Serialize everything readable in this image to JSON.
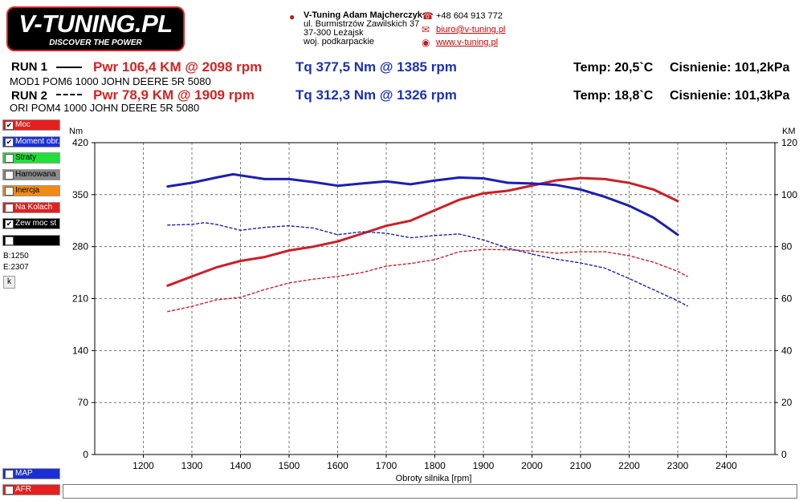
{
  "logo": {
    "main": "V-TUNING.PL",
    "sub": "DISCOVER THE POWER"
  },
  "company": {
    "name": "V-Tuning Adam Majcherczyk",
    "street": "ul. Burmistrzów Zawilskich 37",
    "city": "37-300 Leżajsk",
    "region": "woj. podkarpackie",
    "phone": "+48 604 913 772",
    "email": "biuro@v-tuning.pl",
    "web": "www.v-tuning.pl"
  },
  "runs": [
    {
      "label": "RUN 1",
      "desc": "MOD1 POM6 1000 JOHN DEERE 5R 5080",
      "pwr": "Pwr  106,4 KM @ 2098 rpm",
      "tq": "Tq 377,5 Nm @ 1385 rpm",
      "temp": "Temp: 20,5`C",
      "press": "Cisnienie: 101,2kPa"
    },
    {
      "label": "RUN 2",
      "desc": "ORI POM4 1000 JOHN DEERE 5R 5080",
      "pwr": "Pwr  78,9 KM @ 1909 rpm",
      "tq": "Tq 312,3 Nm @ 1326 rpm",
      "temp": "Temp: 18,8`C",
      "press": "Cisnienie: 101,3kPa"
    }
  ],
  "legend_side": [
    {
      "label": "Moc",
      "checked": true,
      "color": "#e32020",
      "text_color": "#fff"
    },
    {
      "label": "Moment obr.",
      "checked": true,
      "color": "#1b2fd6",
      "text_color": "#fff"
    },
    {
      "label": "Straty",
      "checked": false,
      "color": "#22e03a",
      "text_color": "#000"
    },
    {
      "label": "Hamowana",
      "checked": false,
      "color": "#8a8a8a",
      "text_color": "#000"
    },
    {
      "label": "Inercja",
      "checked": false,
      "color": "#f28a14",
      "text_color": "#000"
    },
    {
      "label": "Na Kolach",
      "checked": false,
      "color": "#e32020",
      "text_color": "#fff"
    },
    {
      "label": "Zew moc st",
      "checked": true,
      "color": "#000000",
      "text_color": "#fff"
    },
    {
      "label": "",
      "checked": false,
      "color": "#000000",
      "text_color": "#fff"
    }
  ],
  "side_notes": {
    "b": "B:1250",
    "e": "E:2307",
    "k": "k"
  },
  "legend_bottom": [
    {
      "label": "MAP",
      "checked": false,
      "color": "#1b2fd6",
      "text_color": "#fff"
    },
    {
      "label": "AFR",
      "checked": false,
      "color": "#e32020",
      "text_color": "#fff"
    }
  ],
  "chart_data": {
    "type": "line",
    "xlabel": "Obroty silnika [rpm]",
    "ylabel_left": "Nm",
    "ylabel_right": "KM",
    "xlim": [
      1100,
      2500
    ],
    "ylim_left": [
      0,
      420
    ],
    "ylim_right": [
      0,
      120
    ],
    "x_ticks": [
      1200,
      1300,
      1400,
      1500,
      1600,
      1700,
      1800,
      1900,
      2000,
      2100,
      2200,
      2300,
      2400
    ],
    "y_ticks_left": [
      0,
      70,
      140,
      210,
      280,
      350,
      420
    ],
    "y_ticks_right": [
      0,
      20,
      40,
      60,
      80,
      100,
      120
    ],
    "grid": true,
    "colors": {
      "power": "#cc1f26",
      "torque": "#1c1fb0"
    },
    "series": [
      {
        "name": "RUN 1 Moc",
        "axis": "right",
        "style": "solid",
        "x": [
          1250,
          1300,
          1350,
          1400,
          1450,
          1500,
          1550,
          1600,
          1650,
          1700,
          1750,
          1800,
          1850,
          1900,
          1950,
          2000,
          2050,
          2100,
          2150,
          2200,
          2250,
          2300
        ],
        "y": [
          65,
          68.5,
          72,
          74.5,
          76,
          78.5,
          80,
          82,
          85,
          88,
          90,
          94,
          98,
          100.5,
          101.5,
          103.5,
          105.5,
          106.4,
          106,
          104.5,
          102,
          97.5
        ]
      },
      {
        "name": "RUN 2 Moc",
        "axis": "right",
        "style": "dashed",
        "x": [
          1250,
          1300,
          1350,
          1400,
          1450,
          1500,
          1550,
          1600,
          1650,
          1700,
          1750,
          1800,
          1850,
          1900,
          1950,
          2000,
          2050,
          2100,
          2150,
          2200,
          2250,
          2300,
          2320
        ],
        "y": [
          55,
          57,
          59.5,
          60.5,
          63.5,
          66,
          67.5,
          68.5,
          70,
          72.5,
          73.5,
          75,
          78,
          78.9,
          78.8,
          78.3,
          77.5,
          78,
          78,
          76.5,
          74,
          70.5,
          68.5
        ]
      },
      {
        "name": "RUN 1 Moment obr.",
        "axis": "left",
        "style": "solid",
        "x": [
          1250,
          1300,
          1350,
          1385,
          1400,
          1450,
          1500,
          1550,
          1600,
          1650,
          1700,
          1750,
          1800,
          1850,
          1900,
          1950,
          2000,
          2050,
          2100,
          2150,
          2200,
          2250,
          2300
        ],
        "y": [
          361,
          366,
          373,
          377.5,
          376,
          371,
          371,
          367,
          362,
          365,
          368,
          364,
          369,
          373,
          372,
          366,
          365,
          363,
          357,
          347,
          335,
          319,
          296
        ]
      },
      {
        "name": "RUN 2 Moment obr.",
        "axis": "left",
        "style": "dashed",
        "x": [
          1250,
          1300,
          1326,
          1350,
          1400,
          1450,
          1500,
          1550,
          1600,
          1650,
          1700,
          1750,
          1800,
          1850,
          1900,
          1950,
          2000,
          2050,
          2100,
          2150,
          2200,
          2250,
          2300,
          2320
        ],
        "y": [
          309,
          310,
          312.3,
          310,
          302,
          306,
          308,
          305,
          296,
          300,
          298,
          292,
          295,
          297,
          289,
          278,
          270,
          263,
          258,
          251,
          237,
          222,
          207,
          200
        ]
      }
    ]
  }
}
